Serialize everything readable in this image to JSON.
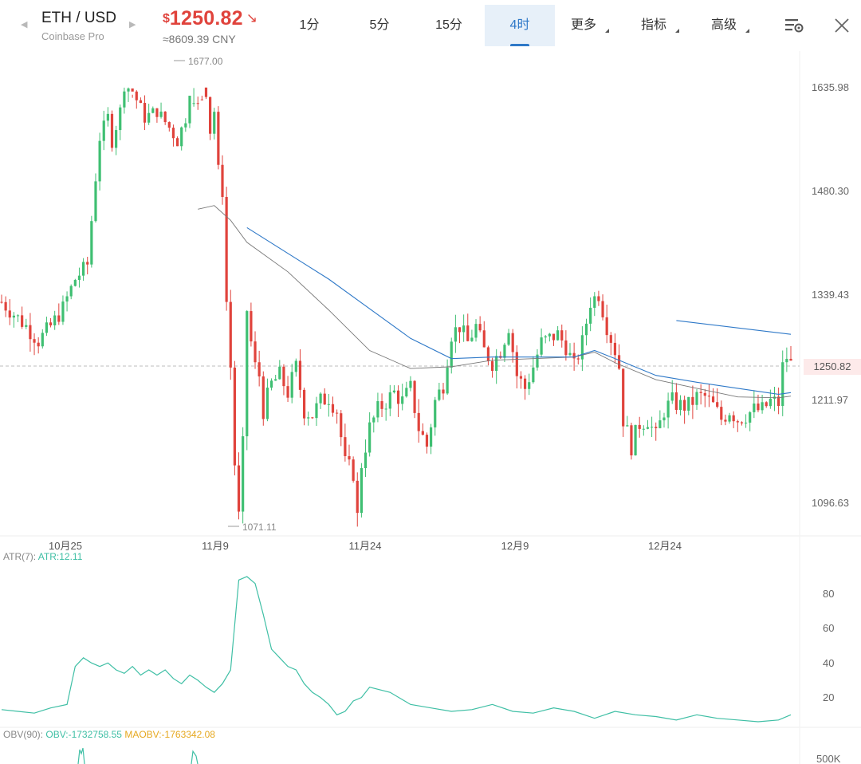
{
  "header": {
    "pair": "ETH / USD",
    "exchange": "Coinbase Pro",
    "currency_symbol": "$",
    "price": "1250.82",
    "price_direction": "↘",
    "cny": "≈8609.39 CNY",
    "tabs": [
      {
        "label": "1分",
        "active": false,
        "has_menu": false
      },
      {
        "label": "5分",
        "active": false,
        "has_menu": false
      },
      {
        "label": "15分",
        "active": false,
        "has_menu": false
      },
      {
        "label": "4时",
        "active": true,
        "has_menu": false
      },
      {
        "label": "更多",
        "active": false,
        "has_menu": true
      },
      {
        "label": "指标",
        "active": false,
        "has_menu": true
      },
      {
        "label": "高级",
        "active": false,
        "has_menu": true
      }
    ],
    "icons": {
      "prev": "chevron-left-icon",
      "next": "chevron-right-icon",
      "settings": "chart-settings-icon",
      "close": "close-icon"
    }
  },
  "colors": {
    "up": "#3fbf72",
    "down": "#e0433c",
    "ma_fast": "#2f79c8",
    "ma_slow": "#777777",
    "atr": "#3fbfa5",
    "obv": "#3fbfa5",
    "maobv": "#e6a81f"
  },
  "chart_data": [
    {
      "type": "candlestick",
      "title": "ETH / USD 4时",
      "y_ticks": [
        "1635.98",
        "1480.30",
        "1339.43",
        "1250.82",
        "1211.97",
        "1096.63"
      ],
      "x_ticks": [
        "10月25",
        "11月9",
        "11月24",
        "12月9",
        "12月24"
      ],
      "ylim": [
        1060,
        1690
      ],
      "high_label": "1677.00",
      "low_label": "1071.11",
      "last_price": "1250.82",
      "series_path": [
        [
          0,
          1330
        ],
        [
          3,
          1315
        ],
        [
          6,
          1300
        ],
        [
          9,
          1282
        ],
        [
          12,
          1300
        ],
        [
          15,
          1322
        ],
        [
          18,
          1360
        ],
        [
          21,
          1380
        ],
        [
          22,
          1440
        ],
        [
          24,
          1560
        ],
        [
          26,
          1590
        ],
        [
          27,
          1555
        ],
        [
          29,
          1600
        ],
        [
          30,
          1640
        ],
        [
          32,
          1630
        ],
        [
          35,
          1590
        ],
        [
          38,
          1600
        ],
        [
          41,
          1575
        ],
        [
          43,
          1555
        ],
        [
          45,
          1590
        ],
        [
          46,
          1660
        ],
        [
          48,
          1650
        ],
        [
          50,
          1630
        ],
        [
          51,
          1570
        ],
        [
          52,
          1600
        ],
        [
          53,
          1510
        ],
        [
          54,
          1480
        ],
        [
          55,
          1330
        ],
        [
          56,
          1250
        ],
        [
          57,
          1140
        ],
        [
          58,
          1080
        ],
        [
          59,
          1160
        ],
        [
          60,
          1320
        ],
        [
          61,
          1280
        ],
        [
          62,
          1250
        ],
        [
          63,
          1240
        ],
        [
          64,
          1200
        ],
        [
          66,
          1230
        ],
        [
          68,
          1240
        ],
        [
          70,
          1220
        ],
        [
          72,
          1250
        ],
        [
          74,
          1200
        ],
        [
          76,
          1195
        ],
        [
          78,
          1210
        ],
        [
          80,
          1215
        ],
        [
          82,
          1200
        ],
        [
          84,
          1140
        ],
        [
          86,
          1130
        ],
        [
          87,
          1080
        ],
        [
          88,
          1140
        ],
        [
          90,
          1180
        ],
        [
          92,
          1200
        ],
        [
          94,
          1210
        ],
        [
          96,
          1220
        ],
        [
          98,
          1210
        ],
        [
          100,
          1225
        ],
        [
          102,
          1180
        ],
        [
          104,
          1160
        ],
        [
          106,
          1210
        ],
        [
          108,
          1230
        ],
        [
          110,
          1290
        ],
        [
          112,
          1300
        ],
        [
          114,
          1280
        ],
        [
          116,
          1300
        ],
        [
          118,
          1270
        ],
        [
          120,
          1255
        ],
        [
          122,
          1270
        ],
        [
          124,
          1300
        ],
        [
          126,
          1240
        ],
        [
          128,
          1225
        ],
        [
          130,
          1250
        ],
        [
          132,
          1280
        ],
        [
          134,
          1285
        ],
        [
          136,
          1290
        ],
        [
          138,
          1275
        ],
        [
          140,
          1250
        ],
        [
          142,
          1280
        ],
        [
          144,
          1330
        ],
        [
          146,
          1340
        ],
        [
          148,
          1300
        ],
        [
          150,
          1270
        ],
        [
          151,
          1250
        ],
        [
          152,
          1190
        ],
        [
          154,
          1160
        ],
        [
          156,
          1185
        ],
        [
          158,
          1190
        ],
        [
          160,
          1170
        ],
        [
          162,
          1200
        ],
        [
          164,
          1210
        ],
        [
          166,
          1205
        ],
        [
          168,
          1205
        ],
        [
          170,
          1215
        ],
        [
          172,
          1215
        ],
        [
          174,
          1205
        ],
        [
          176,
          1190
        ],
        [
          178,
          1200
        ],
        [
          180,
          1190
        ],
        [
          182,
          1195
        ],
        [
          184,
          1200
        ],
        [
          186,
          1200
        ],
        [
          188,
          1210
        ],
        [
          190,
          1208
        ],
        [
          191,
          1250
        ],
        [
          192,
          1262
        ],
        [
          193,
          1253
        ]
      ],
      "ma_fast": [
        [
          60,
          1430
        ],
        [
          80,
          1360
        ],
        [
          100,
          1285
        ],
        [
          110,
          1260
        ],
        [
          120,
          1262
        ],
        [
          130,
          1262
        ],
        [
          140,
          1262
        ],
        [
          145,
          1270
        ],
        [
          150,
          1260
        ],
        [
          160,
          1240
        ],
        [
          170,
          1232
        ],
        [
          180,
          1225
        ],
        [
          190,
          1218
        ],
        [
          193,
          1220
        ]
      ],
      "ma_slow": [
        [
          48,
          1455
        ],
        [
          52,
          1460
        ],
        [
          56,
          1440
        ],
        [
          60,
          1410
        ],
        [
          70,
          1370
        ],
        [
          80,
          1320
        ],
        [
          90,
          1270
        ],
        [
          100,
          1248
        ],
        [
          110,
          1250
        ],
        [
          120,
          1258
        ],
        [
          130,
          1260
        ],
        [
          140,
          1262
        ],
        [
          145,
          1268
        ],
        [
          150,
          1255
        ],
        [
          160,
          1235
        ],
        [
          170,
          1225
        ],
        [
          180,
          1215
        ],
        [
          190,
          1214
        ],
        [
          193,
          1216
        ]
      ],
      "ma_fast_tail": [
        [
          165,
          1307
        ],
        [
          193,
          1290
        ]
      ]
    },
    {
      "type": "line",
      "title": "ATR(7)",
      "legend": "ATR:12.11",
      "y_ticks": [
        "80",
        "60",
        "40",
        "20"
      ],
      "ylim": [
        0,
        100
      ],
      "x": [
        0,
        4,
        8,
        12,
        16,
        18,
        20,
        22,
        24,
        26,
        28,
        30,
        32,
        34,
        36,
        38,
        40,
        42,
        44,
        46,
        48,
        50,
        52,
        54,
        56,
        58,
        60,
        62,
        64,
        66,
        68,
        70,
        72,
        74,
        76,
        78,
        80,
        82,
        84,
        86,
        88,
        90,
        95,
        100,
        105,
        110,
        115,
        120,
        125,
        130,
        135,
        140,
        145,
        150,
        155,
        160,
        165,
        170,
        175,
        180,
        185,
        190,
        193
      ],
      "values": [
        15,
        14,
        13,
        16,
        18,
        40,
        45,
        42,
        40,
        42,
        38,
        36,
        40,
        35,
        38,
        35,
        38,
        33,
        30,
        35,
        32,
        28,
        25,
        30,
        38,
        90,
        92,
        88,
        70,
        50,
        45,
        40,
        38,
        30,
        25,
        22,
        18,
        12,
        14,
        20,
        22,
        28,
        25,
        18,
        16,
        14,
        15,
        18,
        14,
        13,
        16,
        14,
        10,
        14,
        12,
        11,
        9,
        12,
        10,
        9,
        8,
        9,
        12
      ]
    },
    {
      "type": "line",
      "title": "OBV(90)",
      "legend_obv": "OBV:-1732758.55",
      "legend_maobv": "MAOBV:-1763342.08",
      "y_ticks": [
        "500K"
      ]
    }
  ]
}
